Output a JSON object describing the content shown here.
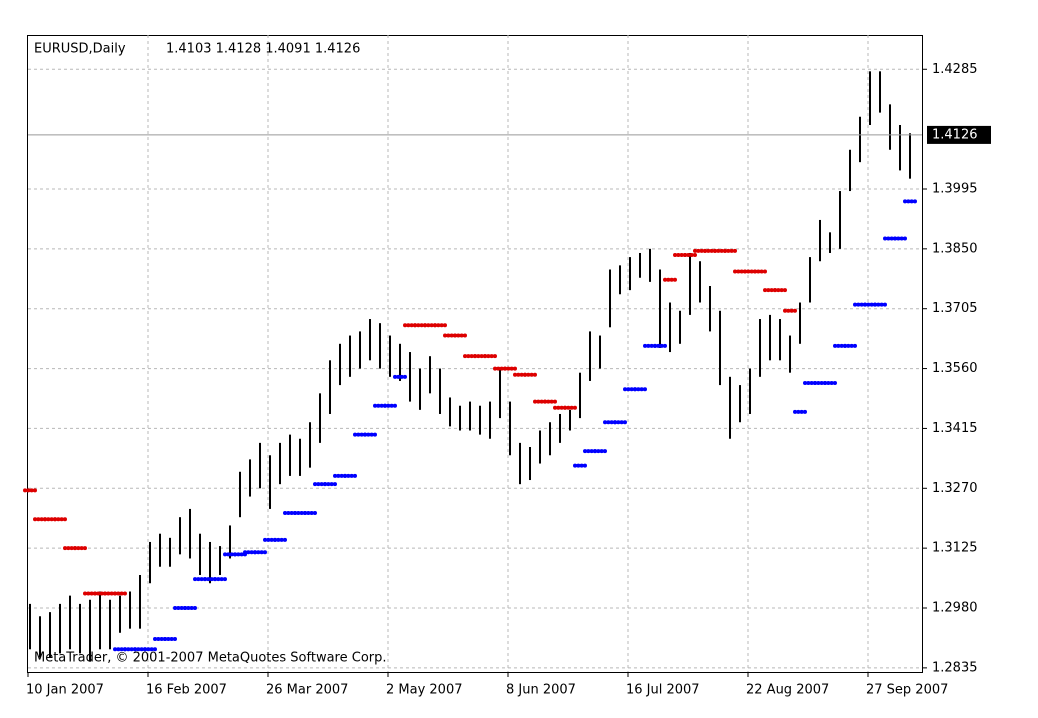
{
  "chart_data": {
    "type": "ohlc",
    "title": "EURUSD,Daily",
    "subtitle": "1.4103 1.4128 1.4091 1.4126",
    "footer": "MetaTrader, © 2001-2007 MetaQuotes Software Corp.",
    "current_price": 1.4126,
    "bar_color": "#000000",
    "grid": true,
    "ylim": [
      1.2825,
      1.4368
    ],
    "yticks": [
      1.2835,
      {
        "value": 1.298,
        "label": "1.2980"
      },
      1.3125,
      {
        "value": 1.327,
        "label": "1.3270"
      },
      1.3415,
      {
        "value": 1.356,
        "label": "1.3560"
      },
      1.3705,
      {
        "value": 1.385,
        "label": "1.3850"
      },
      1.3995,
      1.4285
    ],
    "categories": [
      "10 Jan 2007",
      null,
      null,
      null,
      null,
      null,
      null,
      null,
      null,
      null,
      null,
      null,
      "16 Feb 2007",
      null,
      null,
      null,
      null,
      null,
      null,
      null,
      null,
      null,
      null,
      null,
      "26 Mar 2007",
      null,
      null,
      null,
      null,
      null,
      null,
      null,
      null,
      null,
      null,
      null,
      "2 May 2007",
      null,
      null,
      null,
      null,
      null,
      null,
      null,
      null,
      null,
      null,
      null,
      "8 Jun 2007",
      null,
      null,
      null,
      null,
      null,
      null,
      null,
      null,
      null,
      null,
      null,
      "16 Jul 2007",
      null,
      null,
      null,
      null,
      null,
      null,
      null,
      null,
      null,
      null,
      null,
      "22 Aug 2007",
      null,
      null,
      null,
      null,
      null,
      null,
      null,
      null,
      null,
      null,
      null,
      "27 Sep 2007",
      null,
      null,
      null,
      null
    ],
    "high": [
      1.299,
      1.296,
      1.297,
      1.299,
      1.301,
      1.299,
      1.3,
      1.302,
      1.3,
      1.301,
      1.302,
      1.306,
      1.314,
      1.316,
      1.315,
      1.32,
      1.322,
      1.316,
      1.314,
      1.313,
      1.318,
      1.331,
      1.334,
      1.338,
      1.335,
      1.338,
      1.34,
      1.339,
      1.343,
      1.35,
      1.358,
      1.362,
      1.364,
      1.365,
      1.368,
      1.367,
      1.364,
      1.362,
      1.36,
      1.356,
      1.359,
      1.356,
      1.349,
      1.347,
      1.348,
      1.347,
      1.348,
      1.356,
      1.348,
      1.338,
      1.337,
      1.341,
      1.343,
      1.345,
      1.346,
      1.355,
      1.365,
      1.364,
      1.38,
      1.381,
      1.383,
      1.384,
      1.385,
      1.38,
      1.372,
      1.37,
      1.384,
      1.382,
      1.376,
      1.37,
      1.354,
      1.352,
      1.356,
      1.368,
      1.369,
      1.368,
      1.364,
      1.372,
      1.383,
      1.392,
      1.389,
      1.399,
      1.409,
      1.417,
      1.428,
      1.428,
      1.42,
      1.415,
      1.413
    ],
    "low": [
      1.288,
      1.286,
      1.286,
      1.287,
      1.288,
      1.287,
      1.285,
      1.288,
      1.288,
      1.292,
      1.293,
      1.293,
      1.304,
      1.308,
      1.308,
      1.311,
      1.31,
      1.306,
      1.304,
      1.306,
      1.31,
      1.32,
      1.325,
      1.327,
      1.322,
      1.328,
      1.33,
      1.33,
      1.332,
      1.338,
      1.345,
      1.352,
      1.354,
      1.356,
      1.358,
      1.356,
      1.354,
      1.353,
      1.348,
      1.346,
      1.35,
      1.345,
      1.342,
      1.341,
      1.341,
      1.34,
      1.339,
      1.344,
      1.335,
      1.328,
      1.329,
      1.333,
      1.335,
      1.338,
      1.341,
      1.344,
      1.353,
      1.356,
      1.366,
      1.374,
      1.375,
      1.378,
      1.377,
      1.361,
      1.36,
      1.362,
      1.369,
      1.372,
      1.365,
      1.352,
      1.339,
      1.343,
      1.345,
      1.354,
      1.358,
      1.358,
      1.355,
      1.362,
      1.372,
      1.382,
      1.384,
      1.385,
      1.399,
      1.406,
      1.415,
      1.418,
      1.409,
      1.404,
      1.402
    ],
    "stops": [
      {
        "color": "#dd0000",
        "values": [
          1.3265,
          1.3195,
          1.3195,
          1.3195,
          1.3125,
          1.3125,
          1.3015,
          1.3015,
          1.3015,
          1.3015,
          null,
          null,
          null,
          null,
          null,
          null,
          null,
          null,
          null,
          null,
          null,
          null,
          null,
          null,
          null,
          null,
          null,
          null,
          null,
          null,
          null,
          null,
          null,
          null,
          null,
          null,
          null,
          null,
          1.3665,
          1.3665,
          1.3665,
          1.3665,
          1.364,
          1.364,
          1.359,
          1.359,
          1.359,
          1.356,
          1.356,
          1.3545,
          1.3545,
          1.348,
          1.348,
          1.3465,
          1.3465,
          null,
          null,
          null,
          null,
          null,
          null,
          null,
          null,
          null,
          1.3775,
          1.3835,
          1.3835,
          1.3845,
          1.3845,
          1.3845,
          1.3845,
          1.3795,
          1.3795,
          1.3795,
          1.375,
          1.375,
          1.37,
          null,
          null,
          null,
          null,
          null,
          null,
          null,
          null,
          null,
          null,
          null,
          null
        ]
      },
      {
        "color": "#0000ff",
        "values": [
          null,
          null,
          null,
          null,
          null,
          null,
          null,
          null,
          null,
          1.288,
          1.288,
          1.288,
          1.288,
          1.2905,
          1.2905,
          1.298,
          1.298,
          1.305,
          1.305,
          1.305,
          1.311,
          1.311,
          1.3115,
          1.3115,
          1.3145,
          1.3145,
          1.321,
          1.321,
          1.321,
          1.328,
          1.328,
          1.33,
          1.33,
          1.34,
          1.34,
          1.347,
          1.347,
          1.354,
          null,
          null,
          null,
          null,
          null,
          null,
          null,
          null,
          null,
          null,
          null,
          null,
          null,
          null,
          null,
          null,
          null,
          1.3325,
          1.336,
          1.336,
          1.343,
          1.343,
          1.351,
          1.351,
          1.3615,
          1.3615,
          null,
          null,
          null,
          null,
          null,
          null,
          null,
          null,
          null,
          null,
          null,
          null,
          null,
          1.3455,
          1.3525,
          1.3525,
          1.3525,
          1.3615,
          1.3615,
          1.3715,
          1.3715,
          1.3715,
          1.3875,
          1.3875,
          1.3965
        ]
      }
    ]
  }
}
